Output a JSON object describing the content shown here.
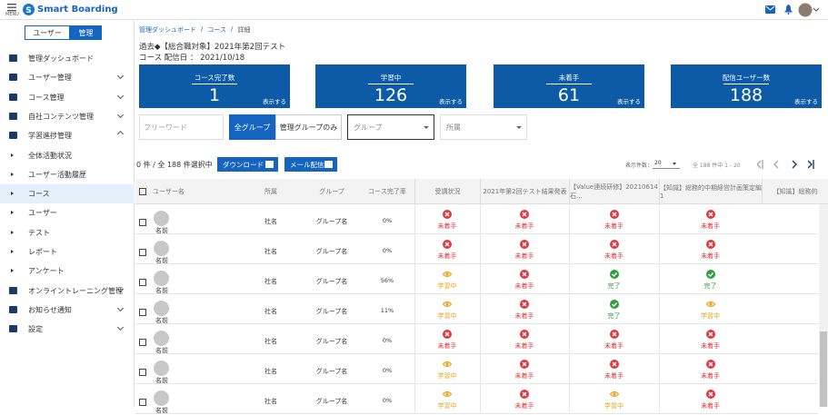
{
  "header": {
    "menu": "MENU",
    "logo": "Smart Boarding"
  },
  "sidebar": {
    "toggle": [
      "ユーザー",
      "管理"
    ],
    "items": [
      {
        "label": "管理ダッシュボード"
      },
      {
        "label": "ユーザー管理",
        "expandable": true
      },
      {
        "label": "コース管理",
        "expandable": true
      },
      {
        "label": "自社コンテンツ管理",
        "expandable": true
      },
      {
        "label": "学習進捗管理",
        "expandable": true,
        "children": [
          {
            "label": "全体活動状況"
          },
          {
            "label": "ユーザー活動履歴"
          },
          {
            "label": "コース",
            "active": true
          },
          {
            "label": "ユーザー"
          },
          {
            "label": "テスト"
          },
          {
            "label": "レポート"
          },
          {
            "label": "アンケート"
          }
        ]
      },
      {
        "label": "オンライントレーニング管理",
        "expandable": true
      },
      {
        "label": "お知らせ通知",
        "expandable": true
      },
      {
        "label": "設定",
        "expandable": true
      }
    ]
  },
  "breadcrumb": {
    "items": [
      "管理ダッシュボード",
      "コース",
      "詳細"
    ],
    "separator": "/"
  },
  "course": {
    "title": "過去◆【総合職対象】2021年第2回テスト",
    "date": "コース 配信日 ： 2021/10/18"
  },
  "stats": {
    "link": "表示する",
    "cards": [
      {
        "label": "コース完了数",
        "value": 1
      },
      {
        "label": "学習中",
        "value": 126
      },
      {
        "label": "未着手",
        "value": 61
      },
      {
        "label": "配信ユーザー数",
        "value": 188
      }
    ]
  },
  "filters": {
    "keyword": "フリーワード",
    "buttons": [
      "全グループ",
      "管理グループのみ"
    ],
    "group": "グループ",
    "affiliation": "所属"
  },
  "actions": {
    "selected": "0 件 / 全 188 件選択中",
    "download": "ダウンロード",
    "mail": "メール配信",
    "per_page_label": "表示件数：",
    "per_page": "20",
    "range": "全 188 件中 1 - 20"
  },
  "table": {
    "headers": [
      "ユーザー名",
      "所属",
      "グループ",
      "コース完了率",
      "受講状況",
      "2021年第2回テスト結果発表",
      "【Value連続研修】20210614石...",
      "【知識】総務的中期経営計画策定編1",
      "【知識】総務的"
    ],
    "rows": [
      {
        "name": "名前",
        "affiliation": "社名",
        "group": "グループ名",
        "rate": "0%",
        "statuses": [
          {
            "label": "未着手",
            "color": "#e0383e",
            "icon": "cross"
          },
          {
            "label": "未着手",
            "color": "#e0383e",
            "icon": "cross"
          },
          {
            "label": "未着手",
            "color": "#e0383e",
            "icon": "cross"
          },
          {
            "label": "未着手",
            "color": "#e0383e",
            "icon": "cross"
          }
        ]
      },
      {
        "name": "名前",
        "affiliation": "社名",
        "group": "グループ名",
        "rate": "0%",
        "statuses": [
          {
            "label": "未着手",
            "color": "#e0383e",
            "icon": "cross"
          },
          {
            "label": "未着手",
            "color": "#e0383e",
            "icon": "cross"
          },
          {
            "label": "未着手",
            "color": "#e0383e",
            "icon": "cross"
          },
          {
            "label": "未着手",
            "color": "#e0383e",
            "icon": "cross"
          }
        ]
      },
      {
        "name": "名前",
        "affiliation": "社名",
        "group": "グループ名",
        "rate": "56%",
        "statuses": [
          {
            "label": "学習中",
            "color": "#e8a317",
            "icon": "eye"
          },
          {
            "label": "未着手",
            "color": "#e0383e",
            "icon": "cross"
          },
          {
            "label": "完了",
            "color": "#2e9e3e",
            "icon": "check"
          },
          {
            "label": "完了",
            "color": "#2e9e3e",
            "icon": "check"
          }
        ]
      },
      {
        "name": "名前",
        "affiliation": "社名",
        "group": "グループ名",
        "rate": "11%",
        "statuses": [
          {
            "label": "学習中",
            "color": "#e8a317",
            "icon": "eye"
          },
          {
            "label": "未着手",
            "color": "#e0383e",
            "icon": "cross"
          },
          {
            "label": "完了",
            "color": "#2e9e3e",
            "icon": "check"
          },
          {
            "label": "学習中",
            "color": "#e8a317",
            "icon": "eye"
          }
        ]
      },
      {
        "name": "名前",
        "affiliation": "社名",
        "group": "グループ名",
        "rate": "0%",
        "statuses": [
          {
            "label": "未着手",
            "color": "#e0383e",
            "icon": "cross"
          },
          {
            "label": "未着手",
            "color": "#e0383e",
            "icon": "cross"
          },
          {
            "label": "未着手",
            "color": "#e0383e",
            "icon": "cross"
          },
          {
            "label": "未着手",
            "color": "#e0383e",
            "icon": "cross"
          }
        ]
      },
      {
        "name": "名前",
        "affiliation": "社名",
        "group": "グループ名",
        "rate": "0%",
        "statuses": [
          {
            "label": "学習中",
            "color": "#e8a317",
            "icon": "eye"
          },
          {
            "label": "未着手",
            "color": "#e0383e",
            "icon": "cross"
          },
          {
            "label": "未着手",
            "color": "#e0383e",
            "icon": "cross"
          },
          {
            "label": "未着手",
            "color": "#e0383e",
            "icon": "cross"
          }
        ]
      },
      {
        "name": "名前",
        "affiliation": "社名",
        "group": "グループ名",
        "rate": "0%",
        "statuses": [
          {
            "label": "学習中",
            "color": "#e8a317",
            "icon": "eye"
          },
          {
            "label": "未着手",
            "color": "#e0383e",
            "icon": "cross"
          },
          {
            "label": "学習中",
            "color": "#e8a317",
            "icon": "eye"
          },
          {
            "label": "未着手",
            "color": "#e0383e",
            "icon": "cross"
          }
        ]
      }
    ]
  }
}
